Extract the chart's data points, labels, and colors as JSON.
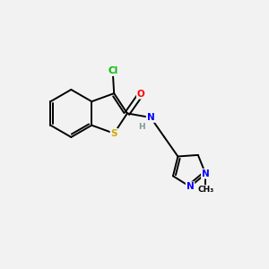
{
  "bg_color": "#f2f2f2",
  "bond_color": "#000000",
  "bond_width": 1.4,
  "atom_colors": {
    "Cl": "#00bb00",
    "O": "#ff0000",
    "N": "#0000ff",
    "S": "#ccaa00",
    "H": "#7a9a9a",
    "C": "#000000"
  },
  "figsize": [
    3.0,
    3.0
  ],
  "dpi": 100
}
